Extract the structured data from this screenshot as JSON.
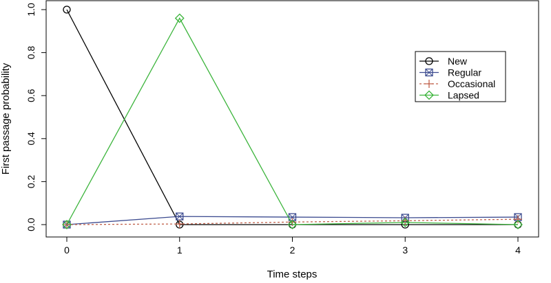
{
  "chart_data": {
    "type": "line",
    "title": "",
    "xlabel": "Time steps",
    "ylabel": "First passage probability",
    "x": [
      0,
      1,
      2,
      3,
      4
    ],
    "xlim": [
      0,
      4
    ],
    "ylim": [
      0,
      1
    ],
    "xticks": [
      "0",
      "1",
      "2",
      "3",
      "4"
    ],
    "yticks": [
      "0.0",
      "0.2",
      "0.4",
      "0.6",
      "0.8",
      "1.0"
    ],
    "grid": false,
    "legend_position": "top-right",
    "series": [
      {
        "name": "New",
        "color": "#000000",
        "marker": "circle",
        "dash": false,
        "values": [
          1.0,
          0.0,
          0.0,
          0.0,
          0.0
        ]
      },
      {
        "name": "Regular",
        "color": "#3b4a8f",
        "marker": "boxed-x",
        "dash": false,
        "values": [
          0.0,
          0.038,
          0.035,
          0.032,
          0.035
        ]
      },
      {
        "name": "Occasional",
        "color": "#c0604a",
        "marker": "plus",
        "dash": true,
        "values": [
          0.0,
          0.003,
          0.012,
          0.018,
          0.025
        ]
      },
      {
        "name": "Lapsed",
        "color": "#3bb43b",
        "marker": "diamond",
        "dash": false,
        "values": [
          0.0,
          0.96,
          0.0,
          0.01,
          0.0
        ]
      }
    ]
  }
}
